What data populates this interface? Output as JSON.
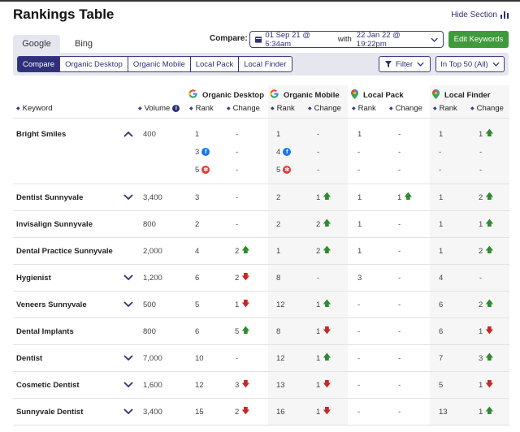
{
  "header": {
    "title": "Rankings Table",
    "hide_label": "Hide Section"
  },
  "engine_tabs": [
    {
      "label": "Google",
      "active": true
    },
    {
      "label": "Bing",
      "active": false
    }
  ],
  "compare": {
    "label": "Compare:",
    "from": "01 Sep 21 @ 5:34am",
    "with": "with",
    "to": "22 Jan 22 @ 19:22pm"
  },
  "edit_keywords": "Edit Keywords",
  "view_tabs": [
    {
      "label": "Compare",
      "active": true
    },
    {
      "label": "Organic Desktop"
    },
    {
      "label": "Organic Mobile"
    },
    {
      "label": "Local Pack"
    },
    {
      "label": "Local Finder"
    }
  ],
  "filter_label": "Filter",
  "top_select": "In Top 50 (All)",
  "colors": {
    "accent": "#2f2f7a",
    "green": "#3e9a3a",
    "up": "#2e8b2e",
    "down": "#c62828"
  },
  "columns": {
    "keyword": "Keyword",
    "volume": "Volume",
    "rank": "Rank",
    "change": "Change",
    "groups": [
      {
        "label": "Organic Desktop",
        "icon": "google-icon"
      },
      {
        "label": "Organic Mobile",
        "icon": "google-icon"
      },
      {
        "label": "Local Pack",
        "icon": "map-pin-icon"
      },
      {
        "label": "Local Finder",
        "icon": "map-pin-icon"
      }
    ]
  },
  "rows": [
    {
      "keyword": "Bright Smiles",
      "expand": "up",
      "volume": "400",
      "groups": [
        {
          "rank": [
            {
              "v": "1"
            },
            {
              "v": "3",
              "icon": "facebook"
            },
            {
              "v": "5",
              "icon": "yelp"
            }
          ],
          "change": [
            {
              "v": "-"
            },
            {
              "v": "-"
            },
            {
              "v": "-"
            }
          ]
        },
        {
          "rank": [
            {
              "v": "1"
            },
            {
              "v": "4",
              "icon": "facebook"
            },
            {
              "v": "5",
              "icon": "yelp"
            }
          ],
          "change": [
            {
              "v": "-"
            },
            {
              "v": "-"
            },
            {
              "v": "-"
            }
          ]
        },
        {
          "rank": [
            {
              "v": "1"
            },
            {
              "v": "-"
            },
            {
              "v": "-"
            }
          ],
          "change": [
            {
              "v": "-"
            },
            {
              "v": "-"
            },
            {
              "v": "-"
            }
          ]
        },
        {
          "rank": [
            {
              "v": "1"
            },
            {
              "v": "-"
            },
            {
              "v": "-"
            }
          ],
          "change": [
            {
              "v": "1",
              "t": "up"
            },
            {
              "v": "-"
            },
            {
              "v": "-"
            }
          ]
        }
      ]
    },
    {
      "keyword": "Dentist Sunnyvale",
      "expand": "down",
      "volume": "3,400",
      "groups": [
        {
          "rank": [
            {
              "v": "3"
            }
          ],
          "change": [
            {
              "v": "-"
            }
          ]
        },
        {
          "rank": [
            {
              "v": "2"
            }
          ],
          "change": [
            {
              "v": "1",
              "t": "up"
            }
          ]
        },
        {
          "rank": [
            {
              "v": "1"
            }
          ],
          "change": [
            {
              "v": "1",
              "t": "up"
            }
          ]
        },
        {
          "rank": [
            {
              "v": "1"
            }
          ],
          "change": [
            {
              "v": "2",
              "t": "up"
            }
          ]
        }
      ]
    },
    {
      "keyword": "Invisalign Sunnyvale",
      "expand": "",
      "volume": "800",
      "groups": [
        {
          "rank": [
            {
              "v": "2"
            }
          ],
          "change": [
            {
              "v": "-"
            }
          ]
        },
        {
          "rank": [
            {
              "v": "2"
            }
          ],
          "change": [
            {
              "v": "2",
              "t": "up"
            }
          ]
        },
        {
          "rank": [
            {
              "v": "1"
            }
          ],
          "change": [
            {
              "v": "-"
            }
          ]
        },
        {
          "rank": [
            {
              "v": "1"
            }
          ],
          "change": [
            {
              "v": "1",
              "t": "up"
            }
          ]
        }
      ]
    },
    {
      "keyword": "Dental Practice Sunnyvale",
      "expand": "",
      "volume": "2,000",
      "groups": [
        {
          "rank": [
            {
              "v": "4"
            }
          ],
          "change": [
            {
              "v": "2",
              "t": "up"
            }
          ]
        },
        {
          "rank": [
            {
              "v": "1"
            }
          ],
          "change": [
            {
              "v": "2",
              "t": "up"
            }
          ]
        },
        {
          "rank": [
            {
              "v": "1"
            }
          ],
          "change": [
            {
              "v": "-"
            }
          ]
        },
        {
          "rank": [
            {
              "v": "1"
            }
          ],
          "change": [
            {
              "v": "2",
              "t": "up"
            }
          ]
        }
      ]
    },
    {
      "keyword": "Hygienist",
      "expand": "down",
      "volume": "1,200",
      "groups": [
        {
          "rank": [
            {
              "v": "6"
            }
          ],
          "change": [
            {
              "v": "2",
              "t": "down"
            }
          ]
        },
        {
          "rank": [
            {
              "v": "8"
            }
          ],
          "change": [
            {
              "v": "-"
            }
          ]
        },
        {
          "rank": [
            {
              "v": "3"
            }
          ],
          "change": [
            {
              "v": "-"
            }
          ]
        },
        {
          "rank": [
            {
              "v": "4"
            }
          ],
          "change": [
            {
              "v": "-"
            }
          ]
        }
      ]
    },
    {
      "keyword": "Veneers Sunnyvale",
      "expand": "down",
      "volume": "500",
      "groups": [
        {
          "rank": [
            {
              "v": "5"
            }
          ],
          "change": [
            {
              "v": "1",
              "t": "down"
            }
          ]
        },
        {
          "rank": [
            {
              "v": "12"
            }
          ],
          "change": [
            {
              "v": "1",
              "t": "up"
            }
          ]
        },
        {
          "rank": [
            {
              "v": "-"
            }
          ],
          "change": [
            {
              "v": "-"
            }
          ]
        },
        {
          "rank": [
            {
              "v": "6"
            }
          ],
          "change": [
            {
              "v": "2",
              "t": "up"
            }
          ]
        }
      ]
    },
    {
      "keyword": "Dental Implants",
      "expand": "",
      "volume": "800",
      "groups": [
        {
          "rank": [
            {
              "v": "6"
            }
          ],
          "change": [
            {
              "v": "5",
              "t": "up"
            }
          ]
        },
        {
          "rank": [
            {
              "v": "8"
            }
          ],
          "change": [
            {
              "v": "1",
              "t": "down"
            }
          ]
        },
        {
          "rank": [
            {
              "v": "-"
            }
          ],
          "change": [
            {
              "v": "-"
            }
          ]
        },
        {
          "rank": [
            {
              "v": "6"
            }
          ],
          "change": [
            {
              "v": "1",
              "t": "down"
            }
          ]
        }
      ]
    },
    {
      "keyword": "Dentist",
      "expand": "down",
      "volume": "7,000",
      "groups": [
        {
          "rank": [
            {
              "v": "10"
            }
          ],
          "change": [
            {
              "v": "-"
            }
          ]
        },
        {
          "rank": [
            {
              "v": "12"
            }
          ],
          "change": [
            {
              "v": "1",
              "t": "up"
            }
          ]
        },
        {
          "rank": [
            {
              "v": "-"
            }
          ],
          "change": [
            {
              "v": "-"
            }
          ]
        },
        {
          "rank": [
            {
              "v": "7"
            }
          ],
          "change": [
            {
              "v": "3",
              "t": "up"
            }
          ]
        }
      ]
    },
    {
      "keyword": "Cosmetic Dentist",
      "expand": "down",
      "volume": "1,600",
      "groups": [
        {
          "rank": [
            {
              "v": "12"
            }
          ],
          "change": [
            {
              "v": "3",
              "t": "down"
            }
          ]
        },
        {
          "rank": [
            {
              "v": "13"
            }
          ],
          "change": [
            {
              "v": "1",
              "t": "down"
            }
          ]
        },
        {
          "rank": [
            {
              "v": "-"
            }
          ],
          "change": [
            {
              "v": "-"
            }
          ]
        },
        {
          "rank": [
            {
              "v": "5"
            }
          ],
          "change": [
            {
              "v": "1",
              "t": "down"
            }
          ]
        }
      ]
    },
    {
      "keyword": "Sunnyvale Dentist",
      "expand": "down",
      "volume": "3,400",
      "groups": [
        {
          "rank": [
            {
              "v": "15"
            }
          ],
          "change": [
            {
              "v": "2",
              "t": "down"
            }
          ]
        },
        {
          "rank": [
            {
              "v": "16"
            }
          ],
          "change": [
            {
              "v": "1",
              "t": "down"
            }
          ]
        },
        {
          "rank": [
            {
              "v": "-"
            }
          ],
          "change": [
            {
              "v": "-"
            }
          ]
        },
        {
          "rank": [
            {
              "v": "13"
            }
          ],
          "change": [
            {
              "v": "1",
              "t": "up"
            }
          ]
        }
      ]
    }
  ]
}
